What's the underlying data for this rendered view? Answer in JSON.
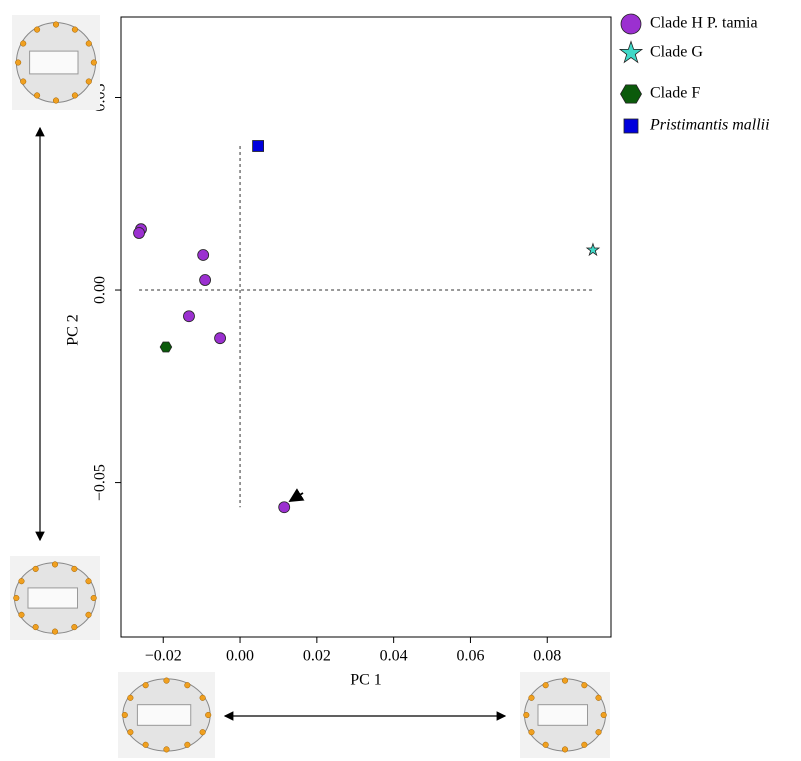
{
  "chart_data": {
    "type": "scatter",
    "x_label": "PC 1",
    "y_label": "PC 2",
    "xlim": [
      -0.031,
      0.0966
    ],
    "ylim": [
      -0.0901,
      0.0709
    ],
    "xticks": [
      {
        "value": -0.02,
        "label": "−0.02"
      },
      {
        "value": 0,
        "label": "0.00"
      },
      {
        "value": 0.02,
        "label": "0.02"
      },
      {
        "value": 0.04,
        "label": "0.04"
      },
      {
        "value": 0.06,
        "label": "0.06"
      },
      {
        "value": 0.08,
        "label": "0.08"
      }
    ],
    "yticks": [
      {
        "value": -0.05,
        "label": "−0.05"
      },
      {
        "value": 0,
        "label": "0.00"
      },
      {
        "value": 0.05,
        "label": "0.05"
      }
    ],
    "series": [
      {
        "name": "Clade H P. tamia",
        "color": "#9b30d0",
        "marker": "circle",
        "x": [
          -0.0258,
          -0.0263,
          -0.0096,
          -0.0091,
          -0.0133,
          -0.0052,
          0.0115
        ],
        "values": [
          0.0158,
          0.0148,
          0.0091,
          0.0026,
          -0.0068,
          -0.0125,
          -0.0564
        ]
      },
      {
        "name": "Clade G",
        "color": "#3fd9c8",
        "marker": "star",
        "x": [
          0.0919
        ],
        "values": [
          0.0104
        ]
      },
      {
        "name": "Clade F",
        "color": "#0b5a0b",
        "marker": "hexagon",
        "x": [
          -0.0193
        ],
        "values": [
          -0.0148
        ]
      },
      {
        "name": "Pristimantis mallii",
        "color": "#0000dd",
        "marker": "square",
        "italic": true,
        "x": [
          0.0047
        ],
        "values": [
          0.0374
        ]
      }
    ]
  }
}
